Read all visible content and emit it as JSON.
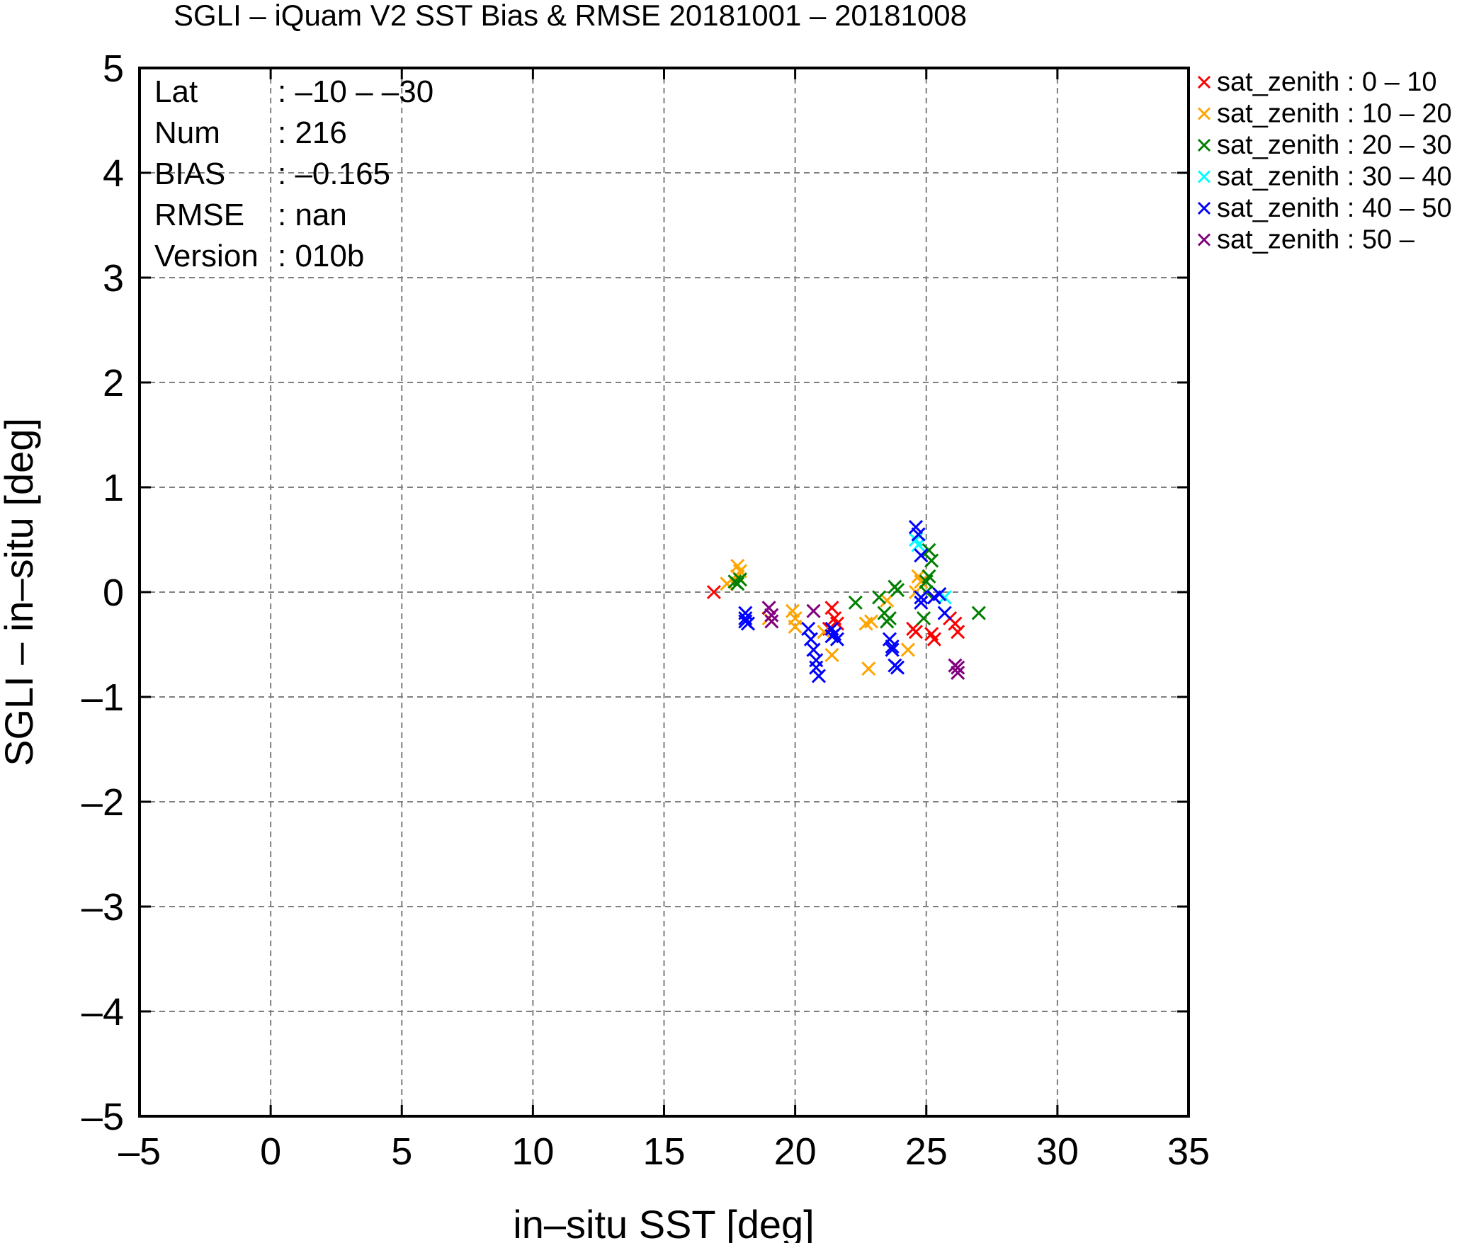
{
  "chart_data": {
    "type": "scatter",
    "title": "SGLI – iQuam V2 SST Bias & RMSE 20181001 – 20181008",
    "xlabel": "in–situ SST [deg]",
    "ylabel": "SGLI – in–situ [deg]",
    "xlim": [
      -5,
      35
    ],
    "ylim": [
      -5,
      5
    ],
    "xticks": [
      -5,
      0,
      5,
      10,
      15,
      20,
      25,
      30,
      35
    ],
    "yticks": [
      -5,
      -4,
      -3,
      -2,
      -1,
      0,
      1,
      2,
      3,
      4,
      5
    ],
    "xtick_labels": [
      "–5",
      "0",
      "5",
      "10",
      "15",
      "20",
      "25",
      "30",
      "35"
    ],
    "ytick_labels": [
      "–5",
      "–4",
      "–3",
      "–2",
      "–1",
      "0",
      "1",
      "2",
      "3",
      "4",
      "5"
    ],
    "grid": true,
    "marker": "x",
    "legend_position": "outside-top-right",
    "stats": [
      {
        "key": "Lat",
        "value": ": –10 – –30"
      },
      {
        "key": "Num",
        "value": ": 216"
      },
      {
        "key": "BIAS",
        "value": ": –0.165"
      },
      {
        "key": "RMSE",
        "value": ": nan"
      },
      {
        "key": "Version",
        "value": ": 010b"
      }
    ],
    "series": [
      {
        "name": "sat_zenith :  0 – 10",
        "color": "#ff0000",
        "points": [
          [
            16.9,
            0.0
          ],
          [
            21.4,
            -0.15
          ],
          [
            21.5,
            -0.25
          ],
          [
            21.3,
            -0.35
          ],
          [
            21.6,
            -0.3
          ],
          [
            24.5,
            -0.35
          ],
          [
            24.6,
            -0.38
          ],
          [
            25.2,
            -0.4
          ],
          [
            25.3,
            -0.45
          ],
          [
            25.9,
            -0.25
          ],
          [
            26.1,
            -0.3
          ],
          [
            26.2,
            -0.38
          ],
          [
            25.3,
            -0.05
          ]
        ]
      },
      {
        "name": "sat_zenith : 10 – 20",
        "color": "#ffa500",
        "points": [
          [
            17.4,
            0.08
          ],
          [
            17.8,
            0.25
          ],
          [
            17.9,
            0.2
          ],
          [
            17.8,
            0.15
          ],
          [
            19.0,
            -0.25
          ],
          [
            19.9,
            -0.18
          ],
          [
            20.0,
            -0.25
          ],
          [
            20.0,
            -0.33
          ],
          [
            21.1,
            -0.38
          ],
          [
            21.4,
            -0.6
          ],
          [
            22.7,
            -0.3
          ],
          [
            22.9,
            -0.28
          ],
          [
            22.8,
            -0.73
          ],
          [
            23.5,
            -0.08
          ],
          [
            24.3,
            -0.55
          ],
          [
            24.8,
            0.1
          ],
          [
            24.7,
            0.15
          ],
          [
            24.6,
            0.0
          ]
        ]
      },
      {
        "name": "sat_zenith : 20 – 30",
        "color": "#008000",
        "points": [
          [
            17.7,
            0.1
          ],
          [
            17.9,
            0.12
          ],
          [
            17.8,
            0.08
          ],
          [
            22.3,
            -0.1
          ],
          [
            23.2,
            -0.05
          ],
          [
            23.4,
            -0.2
          ],
          [
            23.5,
            -0.28
          ],
          [
            23.6,
            -0.25
          ],
          [
            23.8,
            0.05
          ],
          [
            23.9,
            0.02
          ],
          [
            24.9,
            -0.25
          ],
          [
            25.1,
            0.4
          ],
          [
            25.2,
            0.3
          ],
          [
            25.1,
            0.15
          ],
          [
            25.0,
            0.1
          ],
          [
            25.0,
            0.0
          ],
          [
            27.0,
            -0.2
          ]
        ]
      },
      {
        "name": "sat_zenith : 30 – 40",
        "color": "#00ffff",
        "points": [
          [
            24.6,
            0.5
          ],
          [
            24.7,
            0.45
          ],
          [
            25.7,
            -0.05
          ]
        ]
      },
      {
        "name": "sat_zenith : 40 – 50",
        "color": "#0000ff",
        "points": [
          [
            18.1,
            -0.2
          ],
          [
            18.1,
            -0.25
          ],
          [
            18.2,
            -0.3
          ],
          [
            18.1,
            -0.28
          ],
          [
            20.5,
            -0.35
          ],
          [
            20.6,
            -0.45
          ],
          [
            20.7,
            -0.55
          ],
          [
            20.8,
            -0.65
          ],
          [
            20.8,
            -0.72
          ],
          [
            20.9,
            -0.8
          ],
          [
            21.4,
            -0.35
          ],
          [
            21.4,
            -0.42
          ],
          [
            21.5,
            -0.4
          ],
          [
            21.6,
            -0.45
          ],
          [
            23.6,
            -0.45
          ],
          [
            23.7,
            -0.52
          ],
          [
            23.7,
            -0.55
          ],
          [
            23.8,
            -0.7
          ],
          [
            23.9,
            -0.72
          ],
          [
            24.6,
            0.62
          ],
          [
            24.7,
            0.55
          ],
          [
            24.8,
            0.35
          ],
          [
            24.8,
            -0.05
          ],
          [
            24.8,
            -0.1
          ],
          [
            25.3,
            -0.05
          ],
          [
            25.5,
            -0.02
          ],
          [
            25.7,
            -0.2
          ]
        ]
      },
      {
        "name": "sat_zenith : 50 –",
        "color": "#800080",
        "points": [
          [
            19.0,
            -0.15
          ],
          [
            19.1,
            -0.22
          ],
          [
            19.1,
            -0.28
          ],
          [
            20.7,
            -0.18
          ],
          [
            26.1,
            -0.7
          ],
          [
            26.2,
            -0.72
          ],
          [
            26.2,
            -0.77
          ]
        ]
      }
    ]
  }
}
